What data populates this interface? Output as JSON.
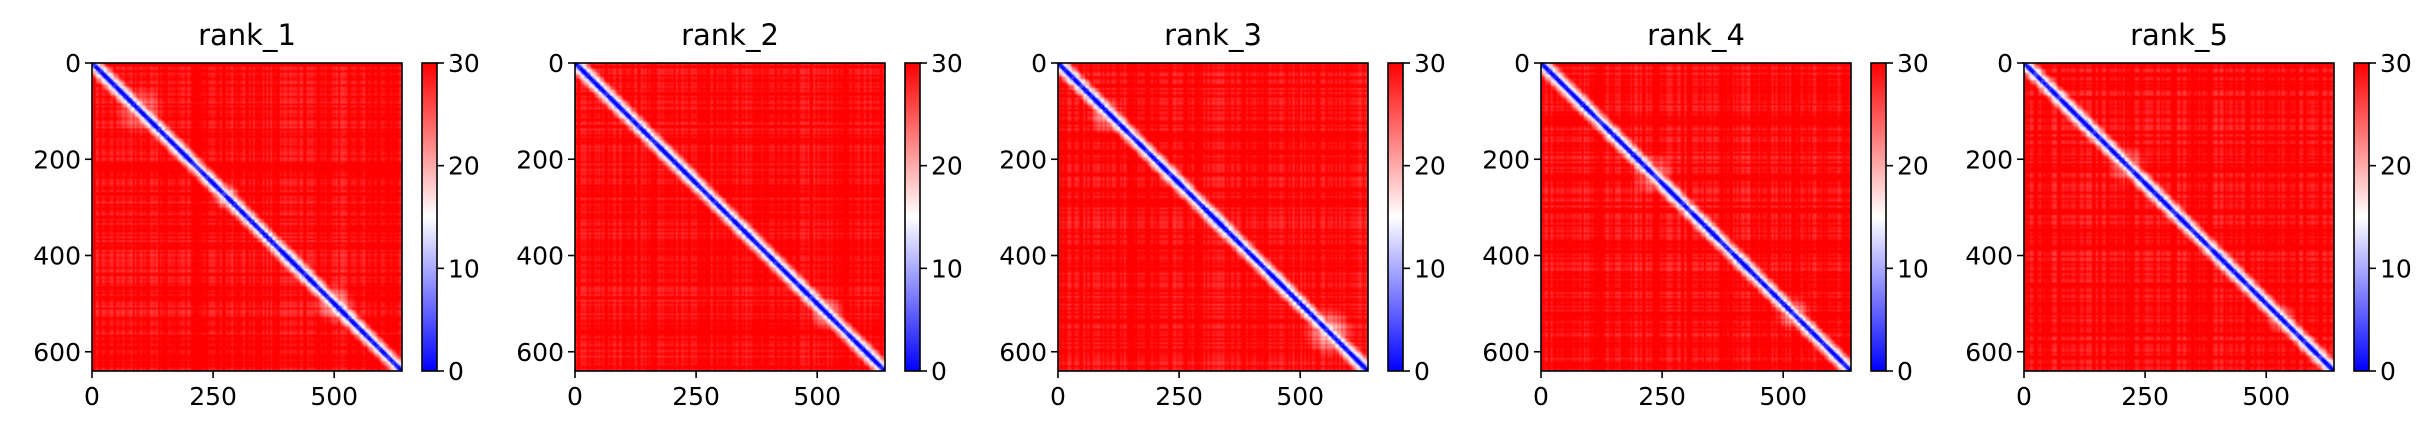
{
  "chart_data": [
    {
      "type": "heatmap",
      "title": "rank_1",
      "matrix_size": 640,
      "xticks": [
        0,
        250,
        500
      ],
      "yticks": [
        0,
        200,
        400,
        600
      ],
      "colorbar": {
        "min": 0,
        "max": 30,
        "ticks": [
          0,
          10,
          20,
          30
        ],
        "colors": [
          "#0000ff",
          "#ffffff",
          "#ff0000"
        ]
      },
      "diagonal_blobs": [
        {
          "x": 60,
          "y": 60,
          "r": 12,
          "v": 6
        },
        {
          "x": 100,
          "y": 100,
          "r": 55,
          "v": 22
        },
        {
          "x": 180,
          "y": 180,
          "r": 14,
          "v": 3
        },
        {
          "x": 280,
          "y": 280,
          "r": 30,
          "v": 10
        },
        {
          "x": 480,
          "y": 480,
          "r": 18,
          "v": 2
        },
        {
          "x": 500,
          "y": 500,
          "r": 45,
          "v": 18
        },
        {
          "x": 575,
          "y": 575,
          "r": 18,
          "v": 3
        }
      ]
    },
    {
      "type": "heatmap",
      "title": "rank_2",
      "matrix_size": 640,
      "xticks": [
        0,
        250,
        500
      ],
      "yticks": [
        0,
        200,
        400,
        600
      ],
      "colorbar": {
        "min": 0,
        "max": 30,
        "ticks": [
          0,
          10,
          20,
          30
        ],
        "colors": [
          "#0000ff",
          "#ffffff",
          "#ff0000"
        ]
      },
      "diagonal_blobs": [
        {
          "x": 80,
          "y": 80,
          "r": 14,
          "v": 8
        },
        {
          "x": 170,
          "y": 170,
          "r": 12,
          "v": 4
        },
        {
          "x": 300,
          "y": 300,
          "r": 10,
          "v": 6
        },
        {
          "x": 520,
          "y": 520,
          "r": 40,
          "v": 18
        },
        {
          "x": 540,
          "y": 540,
          "r": 10,
          "v": 4
        }
      ]
    },
    {
      "type": "heatmap",
      "title": "rank_3",
      "matrix_size": 640,
      "xticks": [
        0,
        250,
        500
      ],
      "yticks": [
        0,
        200,
        400,
        600
      ],
      "colorbar": {
        "min": 0,
        "max": 30,
        "ticks": [
          0,
          10,
          20,
          30
        ],
        "colors": [
          "#0000ff",
          "#ffffff",
          "#ff0000"
        ]
      },
      "diagonal_blobs": [
        {
          "x": 80,
          "y": 80,
          "r": 14,
          "v": 5
        },
        {
          "x": 100,
          "y": 110,
          "r": 40,
          "v": 20
        },
        {
          "x": 360,
          "y": 360,
          "r": 12,
          "v": 4
        },
        {
          "x": 560,
          "y": 560,
          "r": 55,
          "v": 16
        },
        {
          "x": 580,
          "y": 580,
          "r": 12,
          "v": 3
        }
      ]
    },
    {
      "type": "heatmap",
      "title": "rank_4",
      "matrix_size": 640,
      "xticks": [
        0,
        250,
        500
      ],
      "yticks": [
        0,
        200,
        400,
        600
      ],
      "colorbar": {
        "min": 0,
        "max": 30,
        "ticks": [
          0,
          10,
          20,
          30
        ],
        "colors": [
          "#0000ff",
          "#ffffff",
          "#ff0000"
        ]
      },
      "diagonal_blobs": [
        {
          "x": 80,
          "y": 80,
          "r": 12,
          "v": 4
        },
        {
          "x": 170,
          "y": 170,
          "r": 14,
          "v": 3
        },
        {
          "x": 230,
          "y": 230,
          "r": 45,
          "v": 20
        },
        {
          "x": 350,
          "y": 350,
          "r": 12,
          "v": 5
        },
        {
          "x": 520,
          "y": 520,
          "r": 40,
          "v": 17
        },
        {
          "x": 530,
          "y": 530,
          "r": 12,
          "v": 4
        }
      ]
    },
    {
      "type": "heatmap",
      "title": "rank_5",
      "matrix_size": 640,
      "xticks": [
        0,
        250,
        500
      ],
      "yticks": [
        0,
        200,
        400,
        600
      ],
      "colorbar": {
        "min": 0,
        "max": 30,
        "ticks": [
          0,
          10,
          20,
          30
        ],
        "colors": [
          "#0000ff",
          "#ffffff",
          "#ff0000"
        ]
      },
      "diagonal_blobs": [
        {
          "x": 60,
          "y": 60,
          "r": 10,
          "v": 5
        },
        {
          "x": 170,
          "y": 170,
          "r": 14,
          "v": 3
        },
        {
          "x": 210,
          "y": 210,
          "r": 45,
          "v": 20
        },
        {
          "x": 440,
          "y": 440,
          "r": 10,
          "v": 5
        },
        {
          "x": 530,
          "y": 530,
          "r": 35,
          "v": 18
        }
      ]
    }
  ]
}
